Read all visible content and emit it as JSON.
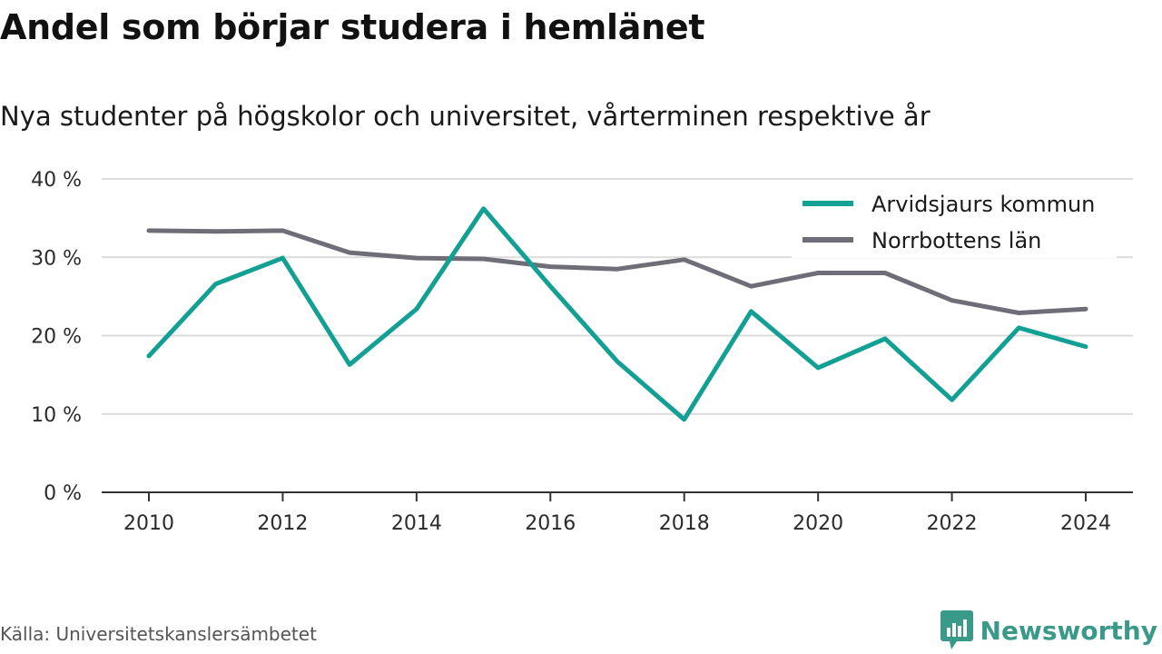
{
  "title": "Andel som börjar studera i hemlänet",
  "subtitle": "Nya studenter på högskolor och universitet, vårterminen respektive år",
  "source": "Källa: Universitetskanslersämbetet",
  "brand": {
    "name": "Newsworthy",
    "icon": "bar-chart-speech-bubble-icon",
    "color": "#3a9a8a"
  },
  "chart_data": {
    "type": "line",
    "title": "Andel som börjar studera i hemlänet",
    "subtitle": "Nya studenter på högskolor och universitet, vårterminen respektive år",
    "x": [
      2010,
      2011,
      2012,
      2013,
      2014,
      2015,
      2016,
      2017,
      2018,
      2019,
      2020,
      2021,
      2022,
      2023,
      2024
    ],
    "x_ticks": [
      2010,
      2012,
      2014,
      2016,
      2018,
      2020,
      2022,
      2024
    ],
    "x_tick_labels": [
      "2010",
      "2012",
      "2014",
      "2016",
      "2018",
      "2020",
      "2022",
      "2024"
    ],
    "ylim": [
      0,
      40
    ],
    "y_ticks": [
      0,
      10,
      20,
      30,
      40
    ],
    "y_tick_labels": [
      "0 %",
      "10 %",
      "20 %",
      "30 %",
      "40 %"
    ],
    "grid": "horizontal",
    "legend_position": "top-right",
    "series": [
      {
        "name": "Arvidsjaurs kommun",
        "color": "#13a094",
        "values": [
          17.4,
          26.6,
          29.9,
          16.3,
          23.4,
          36.2,
          26.3,
          16.7,
          9.3,
          23.1,
          15.9,
          19.6,
          11.8,
          21.0,
          18.6
        ]
      },
      {
        "name": "Norrbottens län",
        "color": "#6f6e78",
        "values": [
          33.4,
          33.3,
          33.4,
          30.6,
          29.9,
          29.8,
          28.8,
          28.5,
          29.7,
          26.3,
          28.0,
          28.0,
          24.5,
          22.9,
          23.4
        ]
      }
    ]
  }
}
